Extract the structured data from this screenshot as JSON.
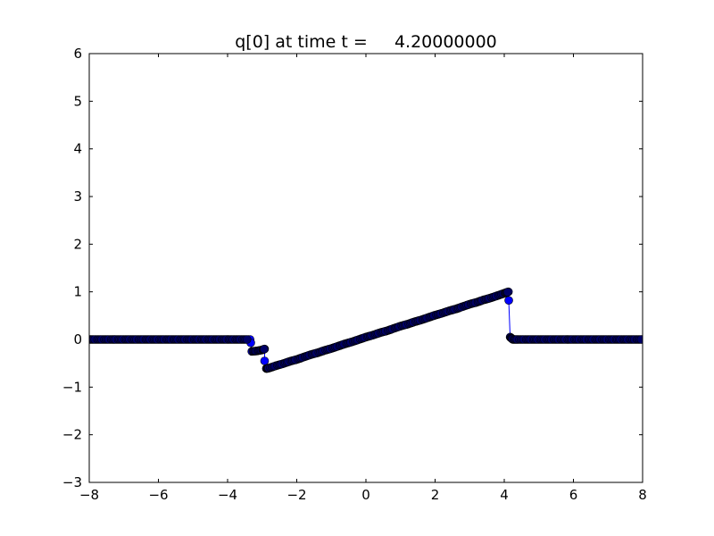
{
  "chart_data": {
    "type": "line",
    "title": "q[0] at time t =     4.20000000",
    "xlabel": "",
    "ylabel": "",
    "xlim": [
      -8,
      8
    ],
    "ylim": [
      -3,
      6
    ],
    "xticks": [
      -8,
      -6,
      -4,
      -2,
      0,
      2,
      4,
      6,
      8
    ],
    "yticks": [
      -3,
      -2,
      -1,
      0,
      1,
      2,
      3,
      4,
      5,
      6
    ],
    "xtick_labels": [
      "−8",
      "−6",
      "−4",
      "−2",
      "0",
      "2",
      "4",
      "6",
      "8"
    ],
    "ytick_labels": [
      "−3",
      "−2",
      "−1",
      "0",
      "1",
      "2",
      "3",
      "4",
      "5",
      "6"
    ],
    "grid": false,
    "marker": "circle",
    "color": "#0000ff",
    "series": [
      {
        "x": [
          -8,
          -7.8,
          -7.6,
          -7.4,
          -7.2,
          -7,
          -6.8,
          -6.6,
          -6.4,
          -6.2,
          -6,
          -5.8,
          -5.6,
          -5.4,
          -5.2,
          -5,
          -4.8,
          -4.6,
          -4.4,
          -4.2,
          -4,
          -3.8,
          -3.6,
          -3.4,
          -3.35,
          -3.33,
          -3.3,
          -3.15,
          -3.0,
          -2.93,
          -2.93,
          -2.88,
          -2.8,
          -2.6,
          -2.4,
          -2.2,
          -2,
          -1.8,
          -1.6,
          -1.4,
          -1.2,
          -1,
          -0.8,
          -0.6,
          -0.4,
          -0.2,
          0,
          0.2,
          0.4,
          0.6,
          0.8,
          1,
          1.2,
          1.4,
          1.6,
          1.8,
          2,
          2.2,
          2.4,
          2.6,
          2.8,
          3,
          3.2,
          3.4,
          3.6,
          3.8,
          4,
          4.12,
          4.13,
          4.17,
          4.25,
          4.4,
          4.6,
          4.8,
          5,
          5.2,
          5.4,
          5.6,
          5.8,
          6,
          6.2,
          6.4,
          6.6,
          6.8,
          7,
          7.2,
          7.4,
          7.6,
          7.8,
          8
        ],
        "y": [
          0,
          0,
          0,
          0,
          0,
          0,
          0,
          0,
          0,
          0,
          0,
          0,
          0,
          0,
          0,
          0,
          0,
          0,
          0,
          0,
          0,
          0,
          0,
          0,
          0,
          -0.07,
          -0.25,
          -0.24,
          -0.22,
          -0.2,
          -0.45,
          -0.61,
          -0.6,
          -0.55,
          -0.51,
          -0.46,
          -0.42,
          -0.37,
          -0.32,
          -0.28,
          -0.23,
          -0.19,
          -0.14,
          -0.09,
          -0.05,
          0,
          0.05,
          0.09,
          0.14,
          0.18,
          0.23,
          0.28,
          0.32,
          0.37,
          0.41,
          0.46,
          0.51,
          0.55,
          0.6,
          0.64,
          0.69,
          0.74,
          0.78,
          0.83,
          0.87,
          0.92,
          0.97,
          1.0,
          0.82,
          0.05,
          0,
          0,
          0,
          0,
          0,
          0,
          0,
          0,
          0,
          0,
          0,
          0,
          0,
          0,
          0,
          0,
          0,
          0,
          0,
          0
        ]
      }
    ]
  }
}
